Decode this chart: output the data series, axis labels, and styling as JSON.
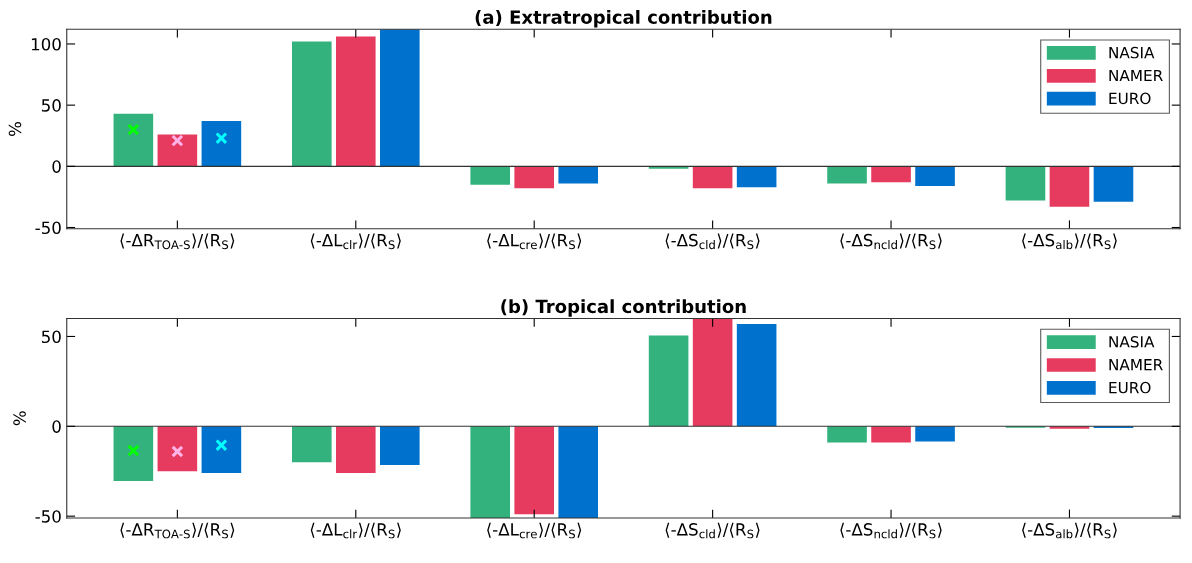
{
  "chart_data": [
    {
      "type": "bar",
      "title": "(a) Extratropical contribution",
      "ylabel": "%",
      "categories": [
        "⟨-ΔR$_{TOA-S}$⟩/⟨R$_{S}$⟩",
        "⟨-ΔL$_{clr}$⟩/⟨R$_{S}$⟩",
        "⟨-ΔL$_{cre}$⟩/⟨R$_{S}$⟩",
        "⟨-ΔS$_{cld}$⟩/⟨R$_{S}$⟩",
        "⟨-ΔS$_{ncld}$⟩/⟨R$_{S}$⟩",
        "⟨-ΔS$_{alb}$⟩/⟨R$_{S}$⟩"
      ],
      "series": [
        {
          "name": "NASIA",
          "color": "#33b27d",
          "values": [
            43,
            102,
            -15,
            -2,
            -14,
            -28
          ]
        },
        {
          "name": "NAMER",
          "color": "#e63b5f",
          "values": [
            26,
            106,
            -18,
            -18,
            -13,
            -33
          ]
        },
        {
          "name": "EURO",
          "color": "#0072cd",
          "values": [
            37,
            112,
            -14,
            -17,
            -16,
            -29
          ]
        },
        {
          "type": "scatter",
          "color": "#00ff00",
          "marker": "cross",
          "values": [
            30,
            null,
            null,
            null,
            null,
            null
          ]
        },
        {
          "type": "scatter",
          "color": "#ffb3e6",
          "marker": "cross",
          "values": [
            21,
            null,
            null,
            null,
            null,
            null
          ]
        },
        {
          "type": "scatter",
          "color": "#00ffff",
          "marker": "cross",
          "values": [
            23,
            null,
            null,
            null,
            null,
            null
          ]
        }
      ],
      "ylim": [
        -51,
        112
      ],
      "yticks": [
        -50,
        0,
        50,
        100
      ],
      "grid": false,
      "legend": "top right",
      "ref_lines": [
        {
          "axis": "y",
          "value": 0
        }
      ]
    },
    {
      "type": "bar",
      "title": "(b) Tropical contribution",
      "ylabel": "%",
      "categories": [
        "⟨-ΔR$_{TOA-S}$⟩/⟨R$_{S}$⟩",
        "⟨-ΔL$_{clr}$⟩/⟨R$_{S}$⟩",
        "⟨-ΔL$_{cre}$⟩/⟨R$_{S}$⟩",
        "⟨-ΔS$_{cld}$⟩/⟨R$_{S}$⟩",
        "⟨-ΔS$_{ncld}$⟩/⟨R$_{S}$⟩",
        "⟨-ΔS$_{alb}$⟩/⟨R$_{S}$⟩"
      ],
      "series": [
        {
          "name": "NASIA",
          "color": "#33b27d",
          "values": [
            -30.5,
            -20,
            -51,
            50.5,
            -9,
            -0.8
          ]
        },
        {
          "name": "NAMER",
          "color": "#e63b5f",
          "values": [
            -25,
            -26,
            -49,
            60,
            -9,
            -1.4
          ]
        },
        {
          "name": "EURO",
          "color": "#0072cd",
          "values": [
            -26,
            -21.5,
            -51,
            57,
            -8.5,
            -1
          ]
        },
        {
          "type": "scatter",
          "color": "#00ff00",
          "marker": "cross",
          "values": [
            -13.5,
            null,
            null,
            null,
            null,
            null
          ]
        },
        {
          "type": "scatter",
          "color": "#ffb3e6",
          "marker": "cross",
          "values": [
            -14,
            null,
            null,
            null,
            null,
            null
          ]
        },
        {
          "type": "scatter",
          "color": "#00ffff",
          "marker": "cross",
          "values": [
            -10.5,
            null,
            null,
            null,
            null,
            null
          ]
        }
      ],
      "ylim": [
        -51,
        60
      ],
      "yticks": [
        -50,
        0,
        50
      ],
      "grid": false,
      "legend": "top right",
      "ref_lines": [
        {
          "axis": "y",
          "value": 0
        }
      ]
    }
  ]
}
